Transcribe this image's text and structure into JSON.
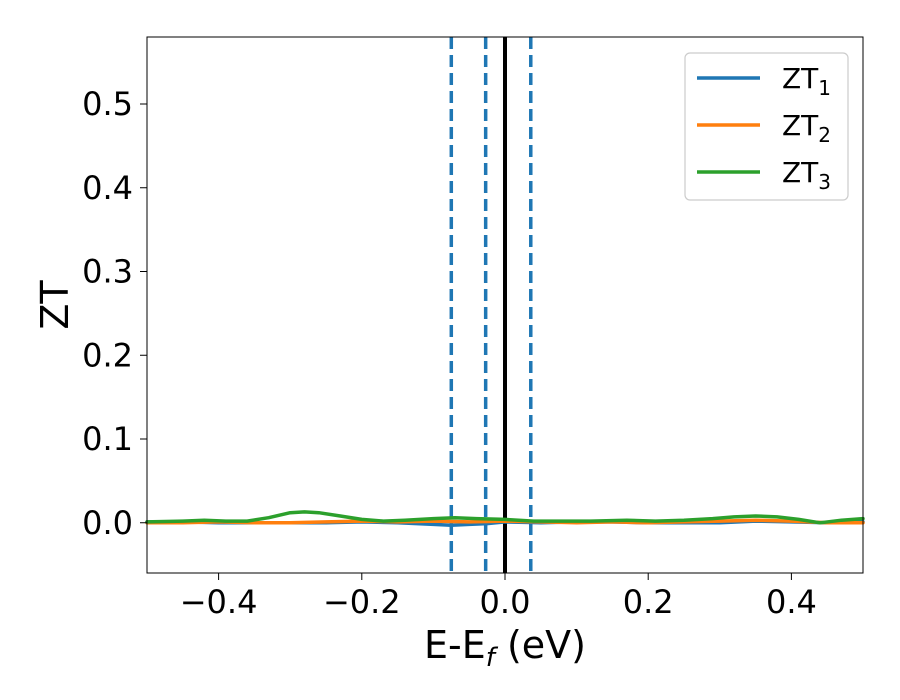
{
  "chart_data": {
    "type": "line",
    "xlabel": "E-E_f (eV)",
    "ylabel": "ZT",
    "xlim": [
      -0.5,
      0.5
    ],
    "ylim": [
      -0.06,
      0.58
    ],
    "xticks": [
      -0.4,
      -0.2,
      0.0,
      0.2,
      0.4
    ],
    "xtick_labels": [
      "−0.4",
      "−0.2",
      "0.0",
      "0.2",
      "0.4"
    ],
    "yticks": [
      0.0,
      0.1,
      0.2,
      0.3,
      0.4,
      0.5
    ],
    "ytick_labels": [
      "0.0",
      "0.1",
      "0.2",
      "0.3",
      "0.4",
      "0.5"
    ],
    "grid": false,
    "legend_position": "top-right",
    "vertical_lines": [
      {
        "x": 0.0,
        "style": "solid",
        "color": "#000000"
      },
      {
        "x": -0.075,
        "style": "dashed",
        "color": "#1f77b4"
      },
      {
        "x": -0.027,
        "style": "dashed",
        "color": "#1f77b4"
      },
      {
        "x": 0.036,
        "style": "dashed",
        "color": "#1f77b4"
      }
    ],
    "series": [
      {
        "name": "ZT1",
        "base": "ZT",
        "sub": "1",
        "color": "#1f77b4",
        "x": [
          -0.5,
          -0.45,
          -0.4,
          -0.35,
          -0.3,
          -0.25,
          -0.2,
          -0.15,
          -0.1,
          -0.075,
          -0.05,
          -0.025,
          0.0,
          0.05,
          0.1,
          0.15,
          0.2,
          0.25,
          0.3,
          0.35,
          0.4,
          0.45,
          0.5
        ],
        "y": [
          0.001,
          0.001,
          0.0,
          0.0,
          0.0,
          0.0,
          0.001,
          0.0,
          -0.002,
          -0.003,
          -0.002,
          -0.001,
          0.001,
          0.0,
          0.001,
          0.001,
          0.0,
          0.0,
          0.0,
          0.002,
          0.001,
          0.0,
          0.001
        ]
      },
      {
        "name": "ZT2",
        "base": "ZT",
        "sub": "2",
        "color": "#ff7f0e",
        "x": [
          -0.5,
          -0.45,
          -0.4,
          -0.35,
          -0.3,
          -0.25,
          -0.2,
          -0.15,
          -0.1,
          -0.05,
          0.0,
          0.05,
          0.1,
          0.15,
          0.2,
          0.25,
          0.3,
          0.35,
          0.4,
          0.45,
          0.5
        ],
        "y": [
          0.0,
          0.0,
          0.001,
          0.0,
          0.0,
          0.001,
          0.002,
          0.001,
          0.002,
          0.001,
          0.002,
          0.001,
          0.0,
          0.001,
          0.0,
          0.001,
          0.002,
          0.003,
          0.002,
          0.0,
          0.0
        ]
      },
      {
        "name": "ZT3",
        "base": "ZT",
        "sub": "3",
        "color": "#2ca02c",
        "x": [
          -0.5,
          -0.45,
          -0.42,
          -0.39,
          -0.36,
          -0.33,
          -0.3,
          -0.28,
          -0.26,
          -0.23,
          -0.2,
          -0.17,
          -0.14,
          -0.1,
          -0.07,
          -0.04,
          0.0,
          0.04,
          0.08,
          0.12,
          0.17,
          0.21,
          0.25,
          0.29,
          0.32,
          0.35,
          0.38,
          0.41,
          0.44,
          0.47,
          0.5
        ],
        "y": [
          0.001,
          0.002,
          0.003,
          0.002,
          0.002,
          0.006,
          0.012,
          0.013,
          0.012,
          0.008,
          0.004,
          0.002,
          0.003,
          0.005,
          0.006,
          0.005,
          0.004,
          0.002,
          0.002,
          0.002,
          0.003,
          0.002,
          0.003,
          0.005,
          0.007,
          0.008,
          0.007,
          0.004,
          0.0,
          0.003,
          0.005
        ]
      }
    ]
  }
}
